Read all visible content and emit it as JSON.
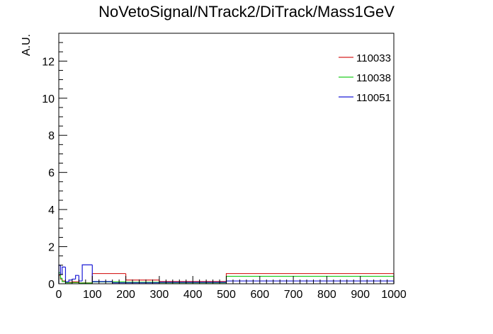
{
  "chart_data": {
    "type": "histogram",
    "title": "NoVetoSignal/NTrack2/DiTrack/Mass1GeV",
    "xlabel": "",
    "ylabel": "A.U.",
    "xlim": [
      0,
      1000
    ],
    "ylim": [
      0,
      13.5
    ],
    "x_ticks": [
      0,
      100,
      200,
      300,
      400,
      500,
      600,
      700,
      800,
      900,
      1000
    ],
    "y_ticks": [
      0,
      2,
      4,
      6,
      8,
      10,
      12
    ],
    "legend_position": "top-right",
    "series": [
      {
        "name": "110033",
        "color": "#d62020",
        "bins": [
          {
            "x0": 0,
            "x1": 5,
            "y": 0.45
          },
          {
            "x0": 5,
            "x1": 10,
            "y": 0.25
          },
          {
            "x0": 10,
            "x1": 20,
            "y": 0.15
          },
          {
            "x0": 20,
            "x1": 40,
            "y": 0.08
          },
          {
            "x0": 40,
            "x1": 60,
            "y": 0.1
          },
          {
            "x0": 60,
            "x1": 100,
            "y": 0.05
          },
          {
            "x0": 100,
            "x1": 200,
            "y": 0.55
          },
          {
            "x0": 200,
            "x1": 300,
            "y": 0.2
          },
          {
            "x0": 300,
            "x1": 500,
            "y": 0.12
          },
          {
            "x0": 500,
            "x1": 1000,
            "y": 0.55
          }
        ]
      },
      {
        "name": "110038",
        "color": "#22cc22",
        "bins": [
          {
            "x0": 0,
            "x1": 5,
            "y": 0.6
          },
          {
            "x0": 5,
            "x1": 10,
            "y": 0.3
          },
          {
            "x0": 10,
            "x1": 20,
            "y": 0.12
          },
          {
            "x0": 20,
            "x1": 40,
            "y": 0.05
          },
          {
            "x0": 40,
            "x1": 60,
            "y": 0.06
          },
          {
            "x0": 60,
            "x1": 100,
            "y": 0.04
          },
          {
            "x0": 100,
            "x1": 200,
            "y": 0.1
          },
          {
            "x0": 200,
            "x1": 300,
            "y": 0.08
          },
          {
            "x0": 300,
            "x1": 500,
            "y": 0.05
          },
          {
            "x0": 500,
            "x1": 1000,
            "y": 0.4
          }
        ]
      },
      {
        "name": "110051",
        "color": "#1a1ad6",
        "bins": [
          {
            "x0": 0,
            "x1": 5,
            "y": 1.0
          },
          {
            "x0": 5,
            "x1": 10,
            "y": 0.5
          },
          {
            "x0": 10,
            "x1": 20,
            "y": 0.9
          },
          {
            "x0": 20,
            "x1": 30,
            "y": 0.1
          },
          {
            "x0": 30,
            "x1": 40,
            "y": 0.2
          },
          {
            "x0": 40,
            "x1": 50,
            "y": 0.25
          },
          {
            "x0": 50,
            "x1": 60,
            "y": 0.45
          },
          {
            "x0": 60,
            "x1": 70,
            "y": 0.15
          },
          {
            "x0": 70,
            "x1": 100,
            "y": 1.02
          },
          {
            "x0": 100,
            "x1": 160,
            "y": 0.12
          },
          {
            "x0": 160,
            "x1": 300,
            "y": 0.05
          },
          {
            "x0": 300,
            "x1": 500,
            "y": 0.08
          },
          {
            "x0": 500,
            "x1": 1000,
            "y": 0.15
          }
        ]
      }
    ]
  }
}
